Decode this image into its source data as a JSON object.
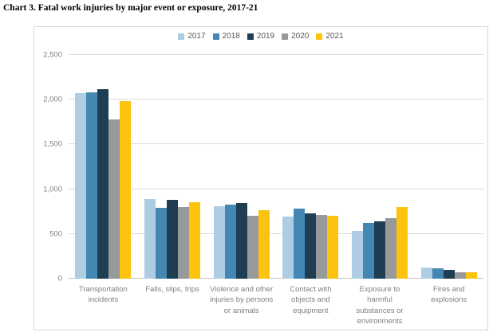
{
  "title": "Chart 3. Fatal work injuries by major event or exposure, 2017-21",
  "chart_data": {
    "type": "bar",
    "title": "Chart 3. Fatal work injuries by major event or exposure, 2017-21",
    "categories": [
      "Transportation incidents",
      "Falls, slips, trips",
      "Violence and other injuries by persons or animals",
      "Contact with objects and equipment",
      "Exposure to harmful substances or environments",
      "Fires and explosions"
    ],
    "category_labels": [
      "Transportation\nincidents",
      "Falls, slips, trips",
      "Violence and other\ninjuries by persons\nor animals",
      "Contact with\nobjects and\nequipment",
      "Exposure to\nharmful\nsubstances or\nenvironments",
      "Fires and\nexplosions"
    ],
    "series": [
      {
        "name": "2017",
        "color": "#aecde2",
        "values": [
          2077,
          887,
          807,
          695,
          531,
          123
        ]
      },
      {
        "name": "2018",
        "color": "#4487b2",
        "values": [
          2080,
          791,
          828,
          786,
          621,
          115
        ]
      },
      {
        "name": "2019",
        "color": "#1f3e53",
        "values": [
          2122,
          880,
          841,
          732,
          642,
          99
        ]
      },
      {
        "name": "2020",
        "color": "#97999b",
        "values": [
          1778,
          805,
          705,
          716,
          672,
          72
        ]
      },
      {
        "name": "2021",
        "color": "#fcc20e",
        "values": [
          1982,
          850,
          761,
          705,
          798,
          72
        ]
      }
    ],
    "xlabel": "",
    "ylabel": "",
    "ylim": [
      0,
      2500
    ],
    "ytick_step": 500,
    "ytick_labels": [
      "0",
      "500",
      "1,000",
      "1,500",
      "2,000",
      "2,500"
    ],
    "grid": true,
    "legend_position": "top-center"
  }
}
